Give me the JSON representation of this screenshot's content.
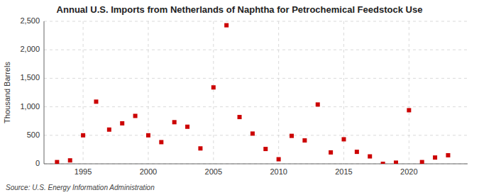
{
  "chart_data": {
    "type": "scatter",
    "title": "Annual U.S. Imports from Netherlands of Naphtha for Petrochemical Feedstock Use",
    "y_label": "Thousand Barrels",
    "source": "Source: U.S. Energy Information Administration",
    "x": [
      1993,
      1994,
      1995,
      1996,
      1997,
      1998,
      1999,
      2000,
      2001,
      2002,
      2003,
      2004,
      2005,
      2006,
      2007,
      2008,
      2009,
      2010,
      2011,
      2012,
      2013,
      2014,
      2015,
      2016,
      2017,
      2018,
      2019,
      2020,
      2021,
      2022,
      2023
    ],
    "values": [
      30,
      60,
      500,
      1090,
      600,
      710,
      840,
      500,
      380,
      730,
      650,
      270,
      1340,
      2430,
      820,
      530,
      260,
      80,
      490,
      410,
      1040,
      200,
      430,
      210,
      130,
      0,
      20,
      940,
      30,
      110,
      150
    ],
    "color": "#cc0000",
    "marker": "square",
    "xlim": [
      1992,
      2024.5
    ],
    "xticks": [
      1995,
      2000,
      2005,
      2010,
      2015,
      2020
    ],
    "ylim": [
      0,
      2500
    ],
    "yticks": [
      0,
      500,
      {
        "value": 1000,
        "label": "1,000"
      },
      {
        "value": 1500,
        "label": "1,500"
      },
      {
        "value": 2000,
        "label": "2,000"
      },
      {
        "value": 2500,
        "label": "2,500"
      }
    ],
    "grid": true
  }
}
